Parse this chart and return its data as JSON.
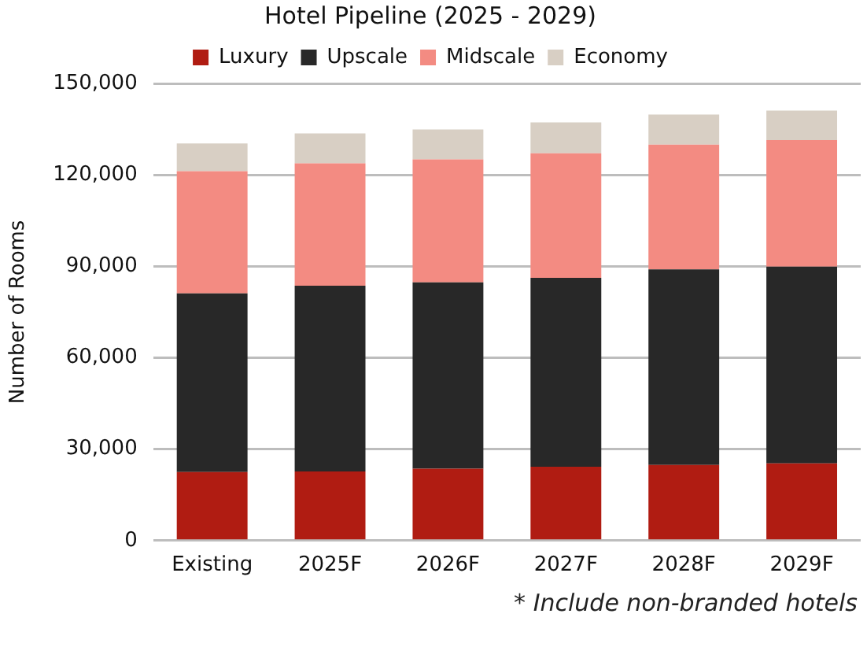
{
  "chart_data": {
    "type": "bar",
    "title": "Hotel Pipeline (2025 - 2029)",
    "ylabel": "Number of Rooms",
    "categories": [
      "Existing",
      "2025F",
      "2026F",
      "2027F",
      "2028F",
      "2029F"
    ],
    "stacked": true,
    "series": [
      {
        "name": "Luxury",
        "color": "#b01c12",
        "values": [
          22500,
          22700,
          23600,
          24200,
          24800,
          25300
        ]
      },
      {
        "name": "Upscale",
        "color": "#282828",
        "values": [
          58600,
          60900,
          61100,
          62000,
          64200,
          64600
        ]
      },
      {
        "name": "Midscale",
        "color": "#f38b82",
        "values": [
          40100,
          40200,
          40400,
          40900,
          40900,
          41500
        ]
      },
      {
        "name": "Economy",
        "color": "#d8cfc4",
        "values": [
          9100,
          9800,
          9800,
          10100,
          9900,
          9700
        ]
      }
    ],
    "ylim": [
      0,
      150000
    ],
    "yticks": [
      {
        "value": 0,
        "label": "0"
      },
      {
        "value": 30000,
        "label": "30,000"
      },
      {
        "value": 60000,
        "label": "60,000"
      },
      {
        "value": 90000,
        "label": "90,000"
      },
      {
        "value": 120000,
        "label": "120,000"
      },
      {
        "value": 150000,
        "label": "150,000"
      }
    ],
    "grid": "y",
    "legend": "top",
    "annotations": [
      "* Include non-branded hotels"
    ]
  }
}
